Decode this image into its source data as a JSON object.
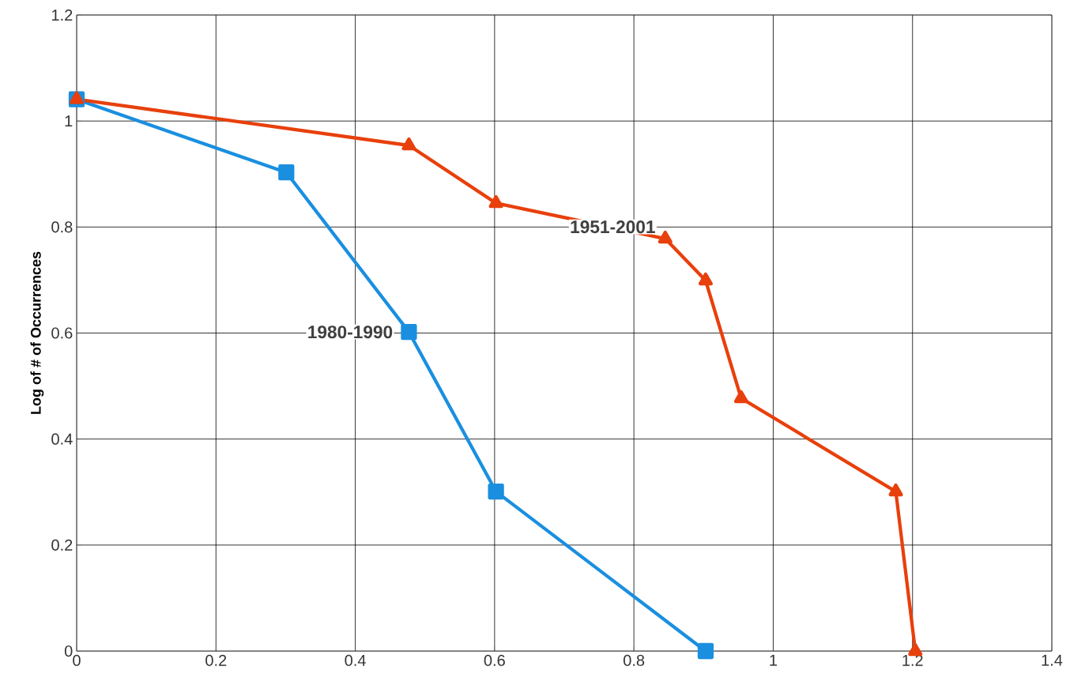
{
  "chart_data": {
    "type": "line",
    "ylabel": "Log of # of Occurrences",
    "series": [
      {
        "name": "1980-1990",
        "color": "#1a8fe0",
        "marker": "square",
        "x": [
          0,
          0.301,
          0.477,
          0.602,
          0.903
        ],
        "values": [
          1.041,
          0.903,
          0.602,
          0.301,
          0
        ]
      },
      {
        "name": "1951-2001",
        "color": "#e8400c",
        "marker": "triangle",
        "x": [
          0,
          0.477,
          0.602,
          0.845,
          0.903,
          0.954,
          1.176,
          1.204
        ],
        "values": [
          1.041,
          0.954,
          0.845,
          0.778,
          0.699,
          0.477,
          0.301,
          0
        ]
      }
    ],
    "xlim": [
      0,
      1.4
    ],
    "xticks": [
      0,
      0.2,
      0.4,
      0.6,
      0.8,
      1,
      1.2,
      1.4
    ],
    "ylim": [
      0,
      1.2
    ],
    "yticks": [
      0,
      0.2,
      0.4,
      0.6,
      0.8,
      1,
      1.2
    ],
    "grid": true,
    "legend": false
  }
}
